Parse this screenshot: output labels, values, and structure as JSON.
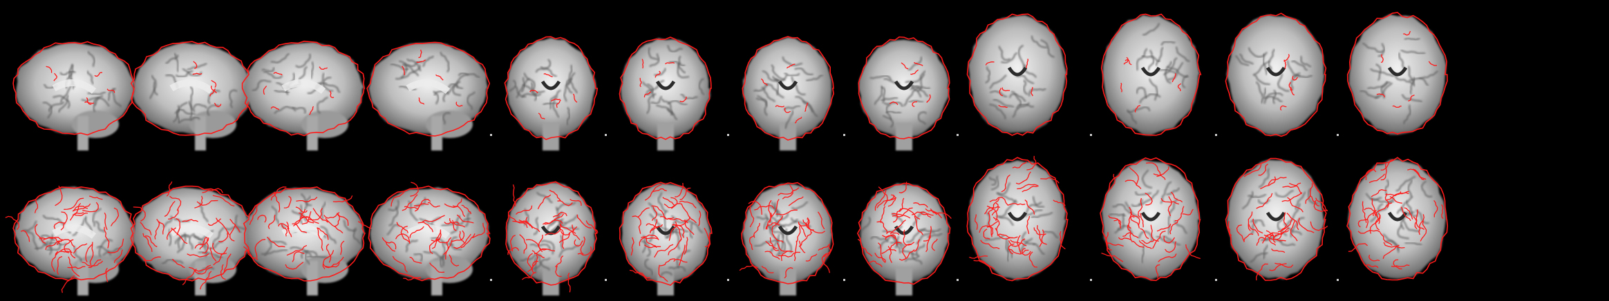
{
  "figure": {
    "background": "#000000",
    "outline_color": "#ff1a1a",
    "rows": [
      {
        "name": "boundary-outline-row",
        "edge_density": "low"
      },
      {
        "name": "detailed-contour-row",
        "edge_density": "high"
      }
    ],
    "views": [
      "sagittal",
      "sagittal",
      "sagittal",
      "sagittal",
      "coronal",
      "coronal",
      "coronal",
      "coronal",
      "axial",
      "axial",
      "axial",
      "axial"
    ]
  }
}
